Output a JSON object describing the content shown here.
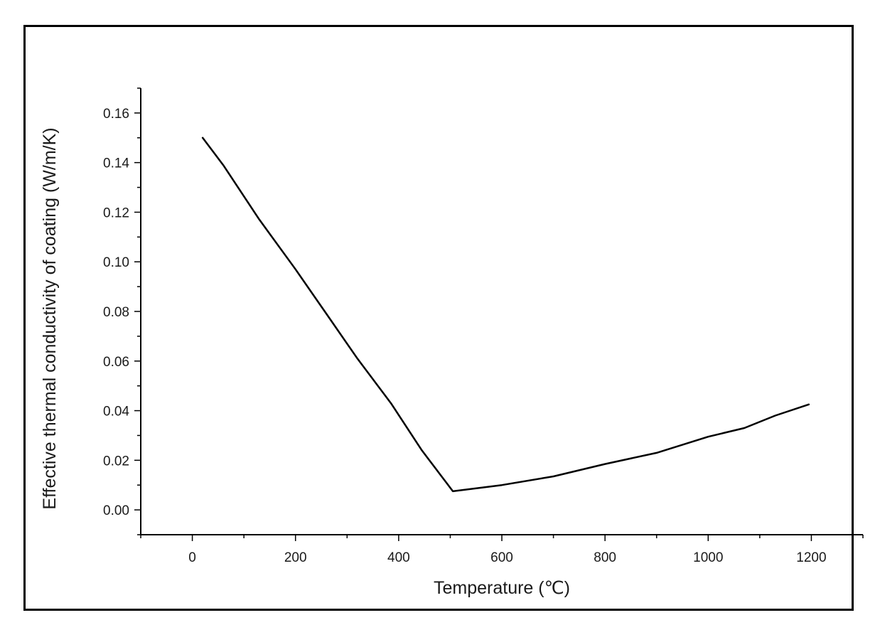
{
  "chart_data": {
    "type": "line",
    "title": "",
    "xlabel": "Temperature (℃)",
    "ylabel": "Effective thermal conductivity of coating (W/m/K)",
    "xlim": [
      -100,
      1300
    ],
    "ylim": [
      -0.01,
      0.17
    ],
    "xticks": [
      0,
      200,
      400,
      600,
      800,
      1000,
      1200
    ],
    "yticks": [
      0.0,
      0.02,
      0.04,
      0.06,
      0.08,
      0.1,
      0.12,
      0.14,
      0.16
    ],
    "xtick_labels": [
      "0",
      "200",
      "400",
      "600",
      "800",
      "1000",
      "1200"
    ],
    "ytick_labels": [
      "0.00",
      "0.02",
      "0.04",
      "0.06",
      "0.08",
      "0.10",
      "0.12",
      "0.14",
      "0.16"
    ],
    "grid": false,
    "legend": "none",
    "series": [
      {
        "color": "#000000",
        "x": [
          20,
          60,
          130,
          200,
          260,
          320,
          385,
          445,
          505,
          600,
          700,
          800,
          900,
          1000,
          1070,
          1130,
          1195
        ],
        "y": [
          0.15,
          0.139,
          0.117,
          0.097,
          0.079,
          0.061,
          0.043,
          0.024,
          0.0075,
          0.01,
          0.0135,
          0.0185,
          0.023,
          0.0295,
          0.033,
          0.038,
          0.0425
        ]
      }
    ]
  }
}
